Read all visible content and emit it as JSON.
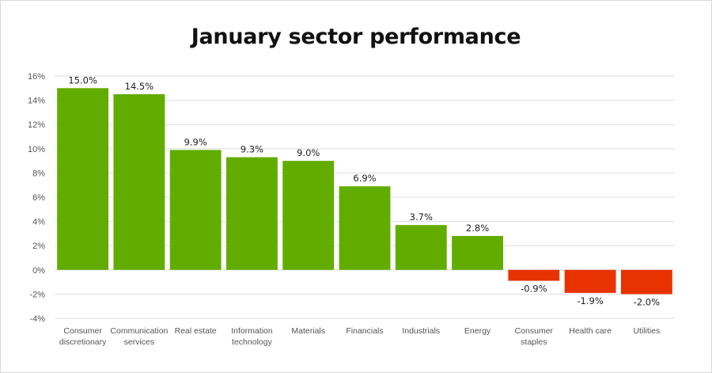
{
  "chart_data": {
    "type": "bar",
    "title": "January sector performance",
    "categories": [
      [
        "Consumer",
        "discretionary"
      ],
      [
        "Communication",
        "services"
      ],
      [
        "Real estate"
      ],
      [
        "Information",
        "technology"
      ],
      [
        "Materials"
      ],
      [
        "Financials"
      ],
      [
        "Industrials"
      ],
      [
        "Energy"
      ],
      [
        "Consumer",
        "staples"
      ],
      [
        "Health care"
      ],
      [
        "Utilities"
      ]
    ],
    "values": [
      15.0,
      14.5,
      9.9,
      9.3,
      9.0,
      6.9,
      3.7,
      2.8,
      -0.9,
      -1.9,
      -2.0
    ],
    "data_labels": [
      "15.0%",
      "14.5%",
      "9.9%",
      "9.3%",
      "9.0%",
      "6.9%",
      "3.7%",
      "2.8%",
      "-0.9%",
      "-1.9%",
      "-2.0%"
    ],
    "yticks": [
      16,
      14,
      12,
      10,
      8,
      6,
      4,
      2,
      0,
      -2,
      -4
    ],
    "ytick_labels": [
      "16%",
      "14%",
      "12%",
      "10%",
      "8%",
      "6%",
      "4%",
      "2%",
      "0%",
      "-2%",
      "-4%"
    ],
    "ylim": [
      -4,
      16
    ],
    "grid": true,
    "xlabel": "",
    "ylabel": "",
    "colors": {
      "positive": "#62ac00",
      "negative": "#e83200",
      "grid": "#dddddd"
    }
  }
}
